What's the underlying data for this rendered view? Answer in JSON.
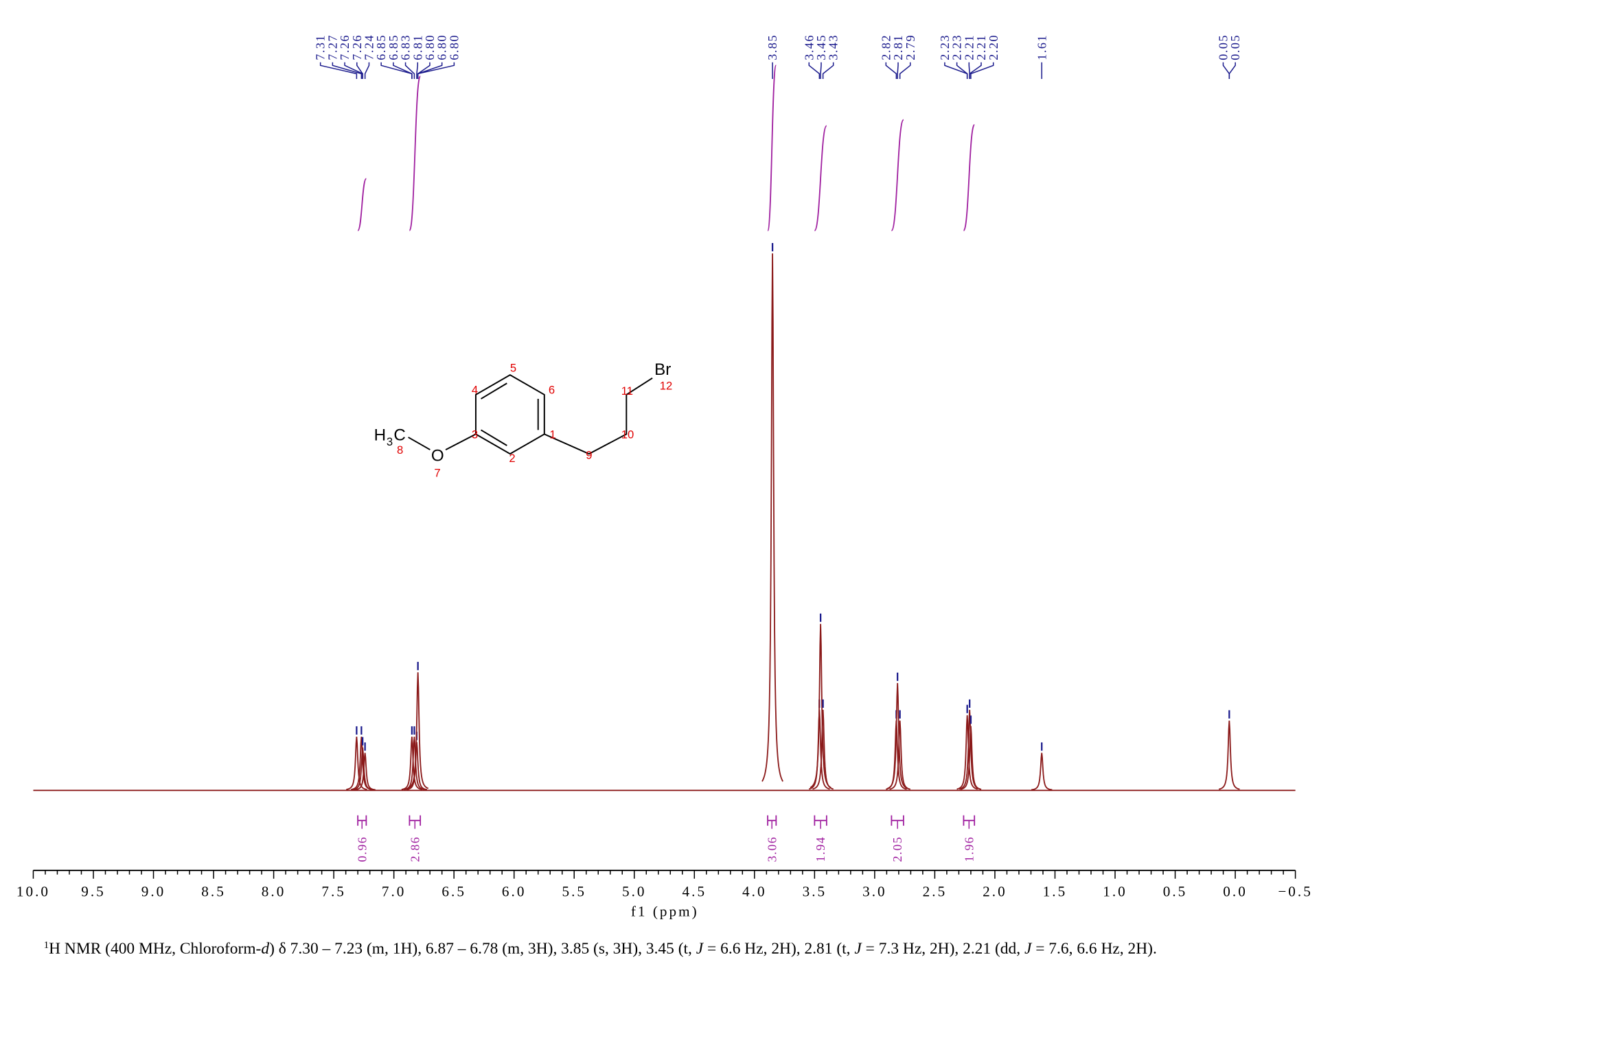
{
  "chart_data": {
    "type": "nmr",
    "x_label": "f1 (ppm)",
    "xlim": [
      10,
      -0.5
    ],
    "xticks": [
      {
        "value": 10,
        "label": "10.0"
      },
      9.5,
      {
        "value": 9,
        "label": "9.0"
      },
      8.5,
      {
        "value": 8,
        "label": "8.0"
      },
      7.5,
      {
        "value": 7,
        "label": "7.0"
      },
      6.5,
      {
        "value": 6,
        "label": "6.0"
      },
      5.5,
      {
        "value": 5,
        "label": "5.0"
      },
      4.5,
      {
        "value": 4,
        "label": "4.0"
      },
      3.5,
      {
        "value": 3,
        "label": "3.0"
      },
      2.5,
      {
        "value": 2,
        "label": "2.0"
      },
      1.5,
      {
        "value": 1,
        "label": "1.0"
      },
      0.5,
      {
        "value": 0,
        "label": "0.0"
      },
      {
        "value": -0.5,
        "label": "−0.5"
      }
    ],
    "spectrum_color": "#8b1a1a",
    "signals": {
      "ppm": [
        7.31,
        7.27,
        7.26,
        7.24,
        6.85,
        6.83,
        6.81,
        6.8,
        3.85,
        3.46,
        3.45,
        3.43,
        2.82,
        2.81,
        2.79,
        2.23,
        2.21,
        2.2,
        1.61,
        0.05
      ],
      "intensity": [
        10,
        10,
        8,
        7,
        10,
        10,
        9,
        22,
        100,
        15,
        31,
        15,
        13,
        20,
        13,
        14,
        15,
        12,
        7,
        13
      ]
    },
    "peak_color": "#1a1a8c",
    "peak_groups": [
      [
        7.31,
        7.27,
        7.26,
        7.26,
        7.24,
        6.85,
        6.85,
        6.83,
        6.81,
        {
          "value": 6.8,
          "label": "6.80"
        },
        {
          "value": 6.8,
          "label": "6.80"
        },
        {
          "value": 6.8,
          "label": "6.80"
        }
      ],
      [
        3.85
      ],
      [
        3.46,
        3.45,
        3.43
      ],
      [
        2.82,
        2.81,
        2.79
      ],
      [
        2.23,
        2.23,
        2.21,
        2.21,
        {
          "value": 2.2,
          "label": "2.20"
        }
      ],
      [
        1.61
      ],
      [
        0.05,
        0.05
      ]
    ],
    "integral_color": "#a020a0",
    "integrals": {
      "from": [
        7.3,
        6.87,
        3.89,
        3.5,
        2.86,
        2.26
      ],
      "to": [
        7.23,
        6.78,
        3.82,
        3.4,
        2.76,
        2.17
      ],
      "values": [
        0.96,
        2.86,
        3.06,
        1.94,
        2.05,
        1.96
      ]
    }
  },
  "structure": {
    "atoms": [
      "Br",
      "O",
      "H",
      "3",
      "C"
    ],
    "numbers": [
      "1",
      "2",
      "3",
      "4",
      "5",
      "6",
      "7",
      "8",
      "9",
      "10",
      "11",
      "12"
    ]
  },
  "caption": [
    {
      "text": "1",
      "style": "sup"
    },
    {
      "text": "H NMR (400 MHz, Chloroform-"
    },
    {
      "text": "d",
      "style": "italic"
    },
    {
      "text": ") δ 7.30 – 7.23 (m, 1H), 6.87 – 6.78 (m, 3H), 3.85 (s, 3H), 3.45 (t, "
    },
    {
      "text": "J",
      "style": "italic"
    },
    {
      "text": " = 6.6 Hz, 2H), 2.81 (t, "
    },
    {
      "text": "J",
      "style": "italic"
    },
    {
      "text": " = 7.3 Hz, 2H), 2.21 (dd, "
    },
    {
      "text": "J",
      "style": "italic"
    },
    {
      "text": " = 7.6, 6.6 Hz, 2H)."
    }
  ]
}
